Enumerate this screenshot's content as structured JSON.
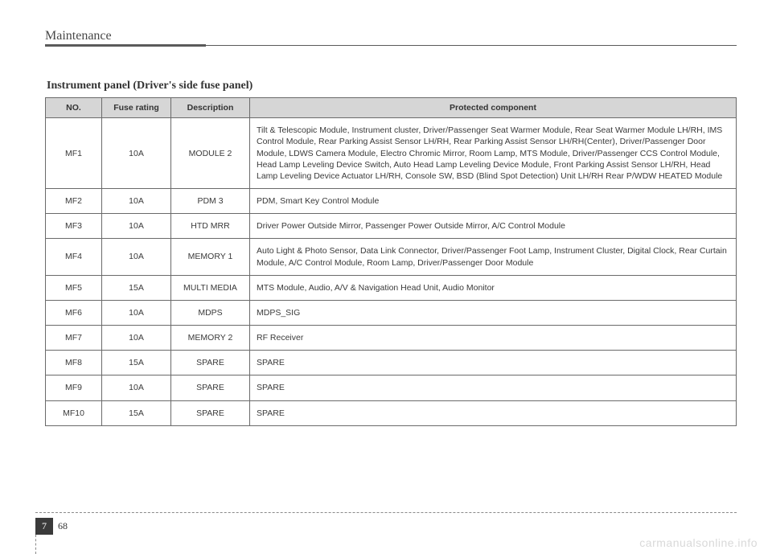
{
  "header": {
    "section": "Maintenance",
    "subtitle": "Instrument panel (Driver's side fuse panel)"
  },
  "table": {
    "columns": [
      "NO.",
      "Fuse rating",
      "Description",
      "Protected component"
    ],
    "rows": [
      {
        "no": "MF1",
        "rating": "10A",
        "desc": "MODULE 2",
        "prot": "Tilt & Telescopic Module, Instrument cluster, Driver/Passenger Seat Warmer Module, Rear Seat Warmer Module LH/RH, IMS Control Module, Rear Parking Assist Sensor LH/RH, Rear Parking Assist Sensor LH/RH(Center), Driver/Passenger Door Module, LDWS Camera Module, Electro Chromic Mirror, Room Lamp, MTS Module, Driver/Passenger CCS Control Module, Head Lamp Leveling Device Switch, Auto Head Lamp Leveling Device Module, Front Parking Assist Sensor LH/RH, Head Lamp Leveling Device Actuator LH/RH,  Console SW, BSD (Blind Spot Detection) Unit LH/RH Rear P/WDW HEATED Module"
      },
      {
        "no": "MF2",
        "rating": "10A",
        "desc": "PDM 3",
        "prot": "PDM, Smart Key Control Module"
      },
      {
        "no": "MF3",
        "rating": "10A",
        "desc": "HTD MRR",
        "prot": "Driver Power Outside Mirror, Passenger Power Outside Mirror, A/C Control Module"
      },
      {
        "no": "MF4",
        "rating": "10A",
        "desc": "MEMORY 1",
        "prot": "Auto Light & Photo Sensor, Data Link Connector, Driver/Passenger Foot Lamp, Instrument Cluster, Digital Clock, Rear Curtain Module, A/C Control Module, Room Lamp, Driver/Passenger Door Module"
      },
      {
        "no": "MF5",
        "rating": "15A",
        "desc": "MULTI MEDIA",
        "prot": "MTS Module, Audio, A/V & Navigation Head Unit, Audio Monitor"
      },
      {
        "no": "MF6",
        "rating": "10A",
        "desc": "MDPS",
        "prot": "MDPS_SIG"
      },
      {
        "no": "MF7",
        "rating": "10A",
        "desc": "MEMORY 2",
        "prot": "RF Receiver"
      },
      {
        "no": "MF8",
        "rating": "15A",
        "desc": "SPARE",
        "prot": "SPARE"
      },
      {
        "no": "MF9",
        "rating": "10A",
        "desc": "SPARE",
        "prot": "SPARE"
      },
      {
        "no": "MF10",
        "rating": "15A",
        "desc": "SPARE",
        "prot": "SPARE"
      }
    ],
    "header_bg": "#d6d6d6",
    "border_color": "#6a6a6a",
    "font_size": 10.5
  },
  "footer": {
    "chapter": "7",
    "page": "68",
    "watermark": "carmanualsonline.info"
  }
}
